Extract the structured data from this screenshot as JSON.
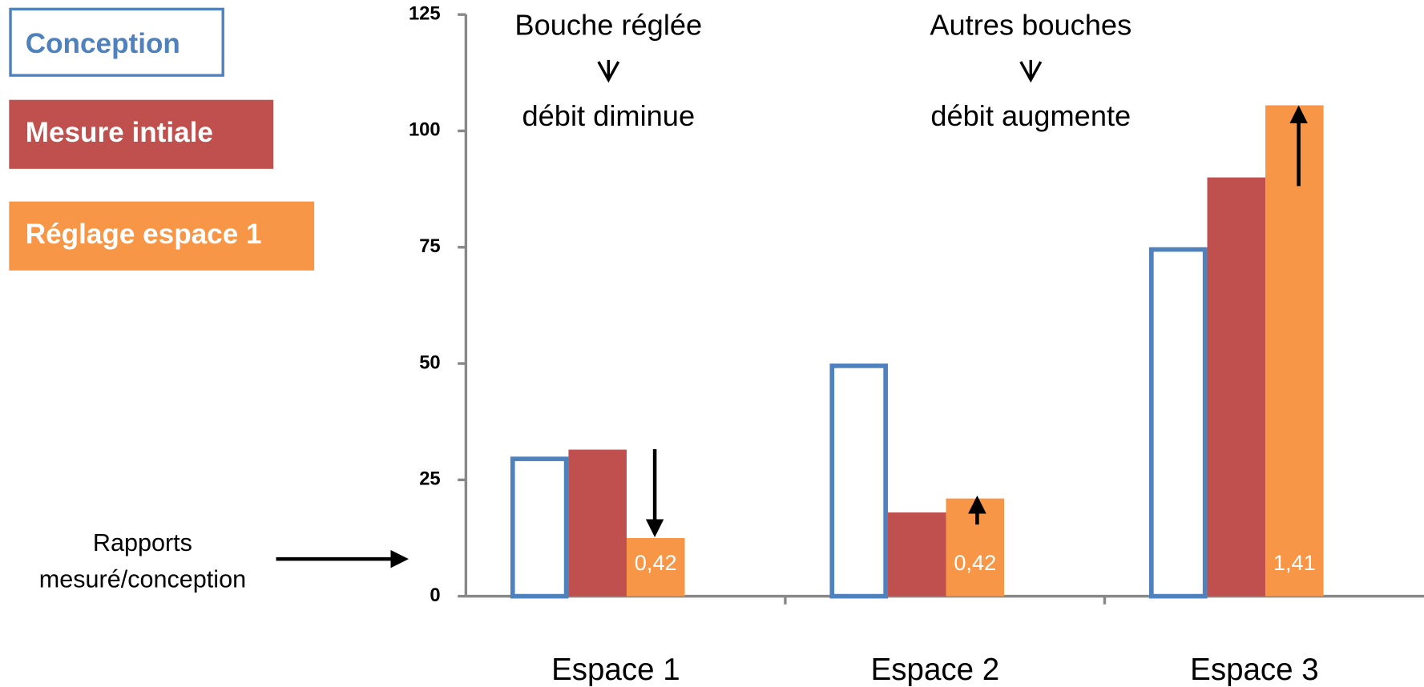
{
  "chart_data": {
    "type": "bar",
    "categories": [
      "Espace 1",
      "Espace 2",
      "Espace 3"
    ],
    "series": [
      {
        "name": "Conception",
        "color": "#4f81bd",
        "values": [
          30,
          50,
          75
        ],
        "style": "outline"
      },
      {
        "name": "Mesure intiale",
        "color": "#c0504d",
        "values": [
          31.5,
          18,
          90
        ]
      },
      {
        "name": "Réglage espace 1",
        "color": "#f79646",
        "values": [
          12.5,
          21,
          105.5
        ],
        "bar_annotations": [
          "0,42",
          "0,42",
          "1,41"
        ]
      }
    ],
    "ylim": [
      0,
      125
    ],
    "yticks": [
      0,
      25,
      50,
      75,
      100,
      125
    ],
    "grid": false,
    "legend": "left",
    "annotations": [
      {
        "line1": "Bouche réglée",
        "line2": "débit diminue"
      },
      {
        "line1": "Autres bouches",
        "line2": "débit augmente"
      }
    ],
    "side_note": [
      "Rapports",
      "mesuré/conception"
    ]
  }
}
